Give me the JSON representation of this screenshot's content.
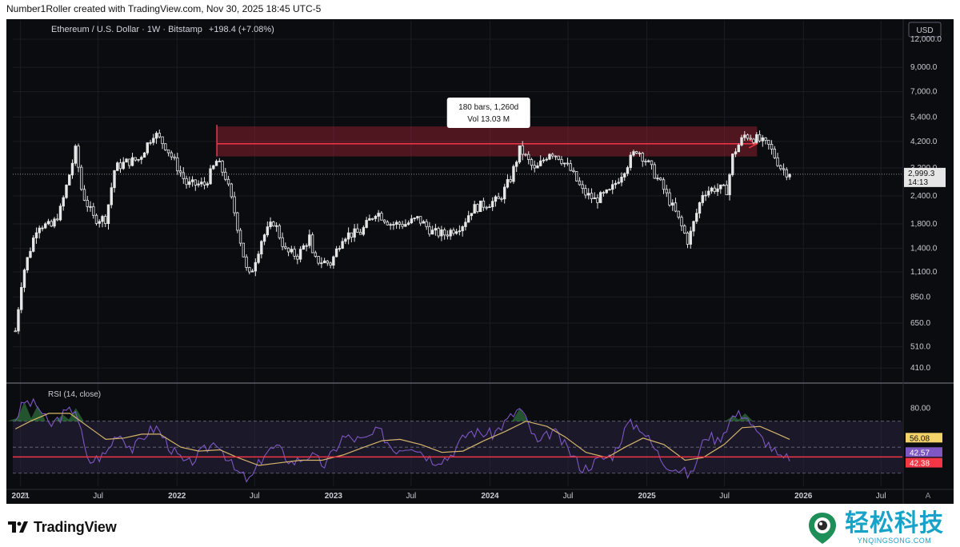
{
  "header": {
    "attribution": "Number1Roller created with TradingView.com, Nov 30, 2025 18:45 UTC-5"
  },
  "chart_data": [
    {
      "type": "candlestick",
      "title": "Ethereum / U.S. Dollar · 1W · Bitstamp",
      "change_text": "+198.4 (+7.08%)",
      "currency_label": "USD",
      "y_scale": "log",
      "ylim": [
        360,
        14500
      ],
      "y_ticks": [
        410,
        510,
        650,
        850,
        1100,
        1400,
        1800,
        2400,
        3200,
        4200,
        5400,
        7000,
        9000,
        12000
      ],
      "y_tick_labels": [
        "410.0",
        "510.0",
        "650.0",
        "850.0",
        "1,100.0",
        "1,400.0",
        "1,800.0",
        "2,400.0",
        "3,200.0",
        "4,200.0",
        "5,400.0",
        "7,000.0",
        "9,000.0",
        "12,000.0"
      ],
      "x_ticks": [
        "2021",
        "Jul",
        "2022",
        "Jul",
        "2023",
        "Jul",
        "2024",
        "Jul",
        "2025",
        "Jul",
        "2026",
        "Jul"
      ],
      "last_price": "2,999.3",
      "countdown": "14:13",
      "close_path": [
        [
          "2020-12-20",
          600
        ],
        [
          "2021-01-05",
          1050
        ],
        [
          "2021-02-10",
          1800
        ],
        [
          "2021-03-15",
          1750
        ],
        [
          "2021-04-05",
          2100
        ],
        [
          "2021-05-10",
          3900
        ],
        [
          "2021-05-24",
          2500
        ],
        [
          "2021-06-21",
          1900
        ],
        [
          "2021-07-19",
          1900
        ],
        [
          "2021-08-09",
          3200
        ],
        [
          "2021-09-06",
          3400
        ],
        [
          "2021-10-04",
          3500
        ],
        [
          "2021-11-08",
          4600
        ],
        [
          "2021-12-06",
          4000
        ],
        [
          "2022-01-03",
          3200
        ],
        [
          "2022-01-24",
          2700
        ],
        [
          "2022-03-07",
          2700
        ],
        [
          "2022-04-04",
          3450
        ],
        [
          "2022-04-25",
          2900
        ],
        [
          "2022-05-16",
          2000
        ],
        [
          "2022-06-13",
          1100
        ],
        [
          "2022-06-20",
          1050
        ],
        [
          "2022-07-18",
          1550
        ],
        [
          "2022-08-15",
          1850
        ],
        [
          "2022-09-12",
          1350
        ],
        [
          "2022-10-10",
          1300
        ],
        [
          "2022-11-07",
          1580
        ],
        [
          "2022-11-14",
          1250
        ],
        [
          "2022-12-26",
          1200
        ],
        [
          "2023-01-23",
          1600
        ],
        [
          "2023-03-06",
          1650
        ],
        [
          "2023-04-10",
          2050
        ],
        [
          "2023-05-15",
          1800
        ],
        [
          "2023-06-19",
          1800
        ],
        [
          "2023-07-17",
          1900
        ],
        [
          "2023-08-21",
          1650
        ],
        [
          "2023-09-18",
          1620
        ],
        [
          "2023-10-30",
          1800
        ],
        [
          "2023-11-20",
          2100
        ],
        [
          "2023-12-18",
          2200
        ],
        [
          "2024-01-22",
          2300
        ],
        [
          "2024-02-19",
          2900
        ],
        [
          "2024-03-11",
          3900
        ],
        [
          "2024-04-15",
          3100
        ],
        [
          "2024-05-20",
          3800
        ],
        [
          "2024-06-10",
          3600
        ],
        [
          "2024-07-08",
          3100
        ],
        [
          "2024-08-05",
          2500
        ],
        [
          "2024-09-02",
          2300
        ],
        [
          "2024-10-07",
          2500
        ],
        [
          "2024-11-11",
          3200
        ],
        [
          "2024-12-09",
          3900
        ],
        [
          "2025-01-06",
          3300
        ],
        [
          "2025-02-03",
          2700
        ],
        [
          "2025-03-10",
          2000
        ],
        [
          "2025-04-07",
          1500
        ],
        [
          "2025-05-12",
          2500
        ],
        [
          "2025-06-09",
          2600
        ],
        [
          "2025-07-07",
          2550
        ],
        [
          "2025-07-21",
          3700
        ],
        [
          "2025-08-18",
          4500
        ],
        [
          "2025-09-15",
          4300
        ],
        [
          "2025-10-13",
          4000
        ],
        [
          "2025-11-10",
          3200
        ],
        [
          "2025-11-30",
          2999
        ]
      ],
      "measure_box": {
        "label_line1": "180 bars, 1,260d",
        "label_line2": "Vol 13.03 M",
        "start": "2022-04-04",
        "end": "2025-09-15",
        "top": 4900,
        "bottom": 3600,
        "line": 4100
      }
    },
    {
      "type": "line",
      "title": "RSI (14, close)",
      "ylim": [
        20,
        95
      ],
      "y_ticks": [
        80
      ],
      "y_tick_labels": [
        "80.00"
      ],
      "bands": [
        70,
        50,
        30
      ],
      "hline": 42.5,
      "value_labels": [
        "56.08",
        "42.57",
        "42.38"
      ],
      "series": [
        {
          "role": "rsi",
          "points": [
            [
              "2020-12-20",
              72
            ],
            [
              "2021-01-10",
              85
            ],
            [
              "2021-02-10",
              82
            ],
            [
              "2021-03-10",
              66
            ],
            [
              "2021-04-10",
              75
            ],
            [
              "2021-05-10",
              80
            ],
            [
              "2021-06-07",
              38
            ],
            [
              "2021-07-19",
              45
            ],
            [
              "2021-08-16",
              62
            ],
            [
              "2021-09-20",
              48
            ],
            [
              "2021-10-25",
              62
            ],
            [
              "2021-11-15",
              65
            ],
            [
              "2021-12-20",
              48
            ],
            [
              "2022-01-24",
              36
            ],
            [
              "2022-02-28",
              46
            ],
            [
              "2022-04-04",
              55
            ],
            [
              "2022-05-16",
              32
            ],
            [
              "2022-06-20",
              24
            ],
            [
              "2022-07-25",
              46
            ],
            [
              "2022-08-22",
              50
            ],
            [
              "2022-09-26",
              38
            ],
            [
              "2022-11-07",
              44
            ],
            [
              "2022-12-12",
              36
            ],
            [
              "2023-01-23",
              58
            ],
            [
              "2023-03-13",
              55
            ],
            [
              "2023-04-17",
              63
            ],
            [
              "2023-05-22",
              48
            ],
            [
              "2023-07-03",
              52
            ],
            [
              "2023-08-21",
              40
            ],
            [
              "2023-09-25",
              42
            ],
            [
              "2023-11-13",
              62
            ],
            [
              "2024-01-08",
              60
            ],
            [
              "2024-03-11",
              80
            ],
            [
              "2024-04-22",
              52
            ],
            [
              "2024-05-27",
              63
            ],
            [
              "2024-07-01",
              48
            ],
            [
              "2024-08-05",
              33
            ],
            [
              "2024-09-09",
              40
            ],
            [
              "2024-10-14",
              44
            ],
            [
              "2024-11-18",
              68
            ],
            [
              "2024-12-16",
              66
            ],
            [
              "2025-01-13",
              52
            ],
            [
              "2025-02-10",
              38
            ],
            [
              "2025-03-17",
              33
            ],
            [
              "2025-04-14",
              28
            ],
            [
              "2025-05-19",
              60
            ],
            [
              "2025-06-16",
              55
            ],
            [
              "2025-07-21",
              74
            ],
            [
              "2025-08-18",
              76
            ],
            [
              "2025-09-15",
              60
            ],
            [
              "2025-10-13",
              52
            ],
            [
              "2025-11-10",
              40
            ],
            [
              "2025-11-30",
              42.6
            ]
          ]
        },
        {
          "role": "rsi-ma",
          "points": [
            [
              "2020-12-20",
              64
            ],
            [
              "2021-01-24",
              70
            ],
            [
              "2021-03-08",
              76
            ],
            [
              "2021-04-26",
              76
            ],
            [
              "2021-06-07",
              66
            ],
            [
              "2021-07-19",
              56
            ],
            [
              "2021-08-30",
              57
            ],
            [
              "2021-10-11",
              60
            ],
            [
              "2021-11-22",
              60
            ],
            [
              "2022-01-10",
              50
            ],
            [
              "2022-02-21",
              47
            ],
            [
              "2022-04-11",
              48
            ],
            [
              "2022-05-23",
              42
            ],
            [
              "2022-07-11",
              36
            ],
            [
              "2022-08-29",
              38
            ],
            [
              "2022-10-17",
              40
            ],
            [
              "2022-12-05",
              40
            ],
            [
              "2023-01-23",
              44
            ],
            [
              "2023-03-13",
              50
            ],
            [
              "2023-04-24",
              55
            ],
            [
              "2023-06-05",
              56
            ],
            [
              "2023-07-24",
              52
            ],
            [
              "2023-09-11",
              46
            ],
            [
              "2023-10-30",
              47
            ],
            [
              "2023-12-18",
              55
            ],
            [
              "2024-02-05",
              62
            ],
            [
              "2024-03-25",
              70
            ],
            [
              "2024-05-13",
              66
            ],
            [
              "2024-06-24",
              58
            ],
            [
              "2024-08-12",
              46
            ],
            [
              "2024-09-30",
              42
            ],
            [
              "2024-11-11",
              50
            ],
            [
              "2024-12-23",
              57
            ],
            [
              "2025-02-10",
              52
            ],
            [
              "2025-03-31",
              40
            ],
            [
              "2025-05-12",
              42
            ],
            [
              "2025-06-30",
              52
            ],
            [
              "2025-08-11",
              65
            ],
            [
              "2025-09-22",
              66
            ],
            [
              "2025-11-03",
              60
            ],
            [
              "2025-11-30",
              56
            ]
          ]
        }
      ]
    }
  ],
  "corner_left": "Z",
  "corner_right": "A",
  "colors": {
    "accent_red": "#f23645",
    "measure_fill": "#8a1f2e",
    "candle": "#e6e6e6",
    "rsi_line": "#7e57c2",
    "rsi_ma": "#d4b56a",
    "rsi_band": "#2a2240",
    "ma_label": "#f5d36b",
    "rsi_label": "#7e57c2"
  },
  "footer": {
    "logo_word": "TradingView",
    "watermark_cn": "轻松科技",
    "watermark_en": "YNQINGSONG.COM"
  }
}
